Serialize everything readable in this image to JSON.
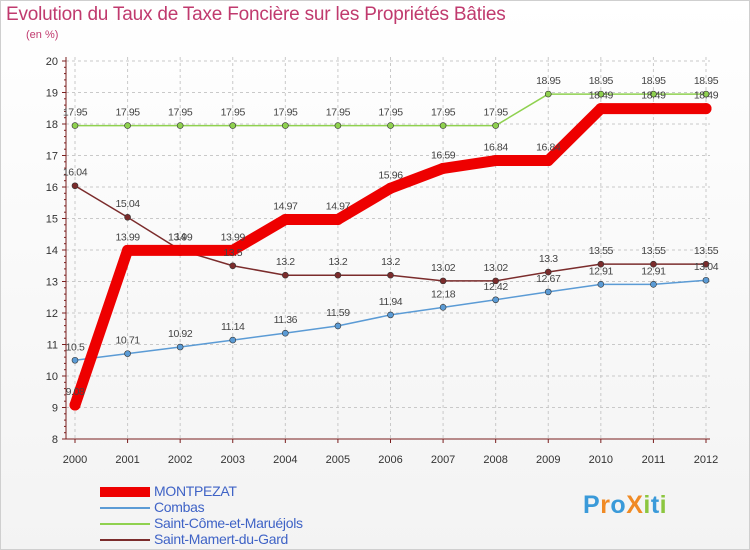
{
  "header": {
    "title": "Evolution du Taux de Taxe Foncière sur les Propriétés Bâties",
    "subtitle": "(en %)"
  },
  "colors": {
    "title": "#c03a6e",
    "legend_text": "#3f63c6",
    "grid": "#c9c9c9",
    "axis": "#7a1f1f"
  },
  "chart_data": {
    "type": "line",
    "title": "Evolution du Taux de Taxe Foncière sur les Propriétés Bâties",
    "ylabel": "(en %)",
    "xlabel": "",
    "ylim": [
      8,
      20
    ],
    "yticks": [
      "8",
      "9",
      "10",
      "11",
      "12",
      "13",
      "14",
      "15",
      "16",
      "17",
      "18",
      "19",
      "20"
    ],
    "categories": [
      "2000",
      "2001",
      "2002",
      "2003",
      "2004",
      "2005",
      "2006",
      "2007",
      "2008",
      "2009",
      "2010",
      "2011",
      "2012"
    ],
    "grid": true,
    "legend_position": "bottom-left",
    "series": [
      {
        "name": "MONTPEZAT",
        "color": "#ee0000",
        "values": [
          9.08,
          13.99,
          13.99,
          13.99,
          14.97,
          14.97,
          15.96,
          16.59,
          16.84,
          16.84,
          18.49,
          18.49,
          18.49
        ],
        "labels": [
          "9.08",
          "13.99",
          "13.99",
          "13.99",
          "14.97",
          "14.97",
          "15.96",
          "16.59",
          "16.84",
          "16.84",
          "18.49",
          "18.49",
          "18.49"
        ]
      },
      {
        "name": "Combas",
        "color": "#5b9bd5",
        "values": [
          10.5,
          10.71,
          10.92,
          11.14,
          11.36,
          11.59,
          11.94,
          12.18,
          12.42,
          12.67,
          12.91,
          12.91,
          13.04
        ],
        "labels": [
          "10.5",
          "10.71",
          "10.92",
          "11.14",
          "11.36",
          "11.59",
          "11.94",
          "12.18",
          "12.42",
          "12.67",
          "12.91",
          "12.91",
          "13.04"
        ]
      },
      {
        "name": "Saint-Côme-et-Maruéjols",
        "color": "#8fd14f",
        "values": [
          17.95,
          17.95,
          17.95,
          17.95,
          17.95,
          17.95,
          17.95,
          17.95,
          17.95,
          18.95,
          18.95,
          18.95,
          18.95
        ],
        "labels": [
          "17.95",
          "17.95",
          "17.95",
          "17.95",
          "17.95",
          "17.95",
          "17.95",
          "17.95",
          "17.95",
          "18.95",
          "18.95",
          "18.95",
          "18.95"
        ]
      },
      {
        "name": "Saint-Mamert-du-Gard",
        "color": "#7b2c2c",
        "values": [
          16.04,
          15.04,
          14,
          13.5,
          13.2,
          13.2,
          13.2,
          13.02,
          13.02,
          13.3,
          13.55,
          13.55,
          13.55
        ],
        "labels": [
          "16.04",
          "15.04",
          "14",
          "13.5",
          "13.2",
          "13.2",
          "13.2",
          "13.02",
          "13.02",
          "13.3",
          "13.55",
          "13.55",
          "13.55"
        ]
      }
    ]
  },
  "legend": {
    "items": [
      "MONTPEZAT",
      "Combas",
      "Saint-Côme-et-Maruéjols",
      "Saint-Mamert-du-Gard"
    ]
  },
  "logo": {
    "text": "ProXiti",
    "letters": [
      "P",
      "r",
      "o",
      "X",
      "i",
      "t",
      "i"
    ],
    "letter_colors": [
      "#3a9ad9",
      "#f08a24",
      "#3a9ad9",
      "#f08a24",
      "#8cc63f",
      "#3a9ad9",
      "#8cc63f"
    ]
  }
}
